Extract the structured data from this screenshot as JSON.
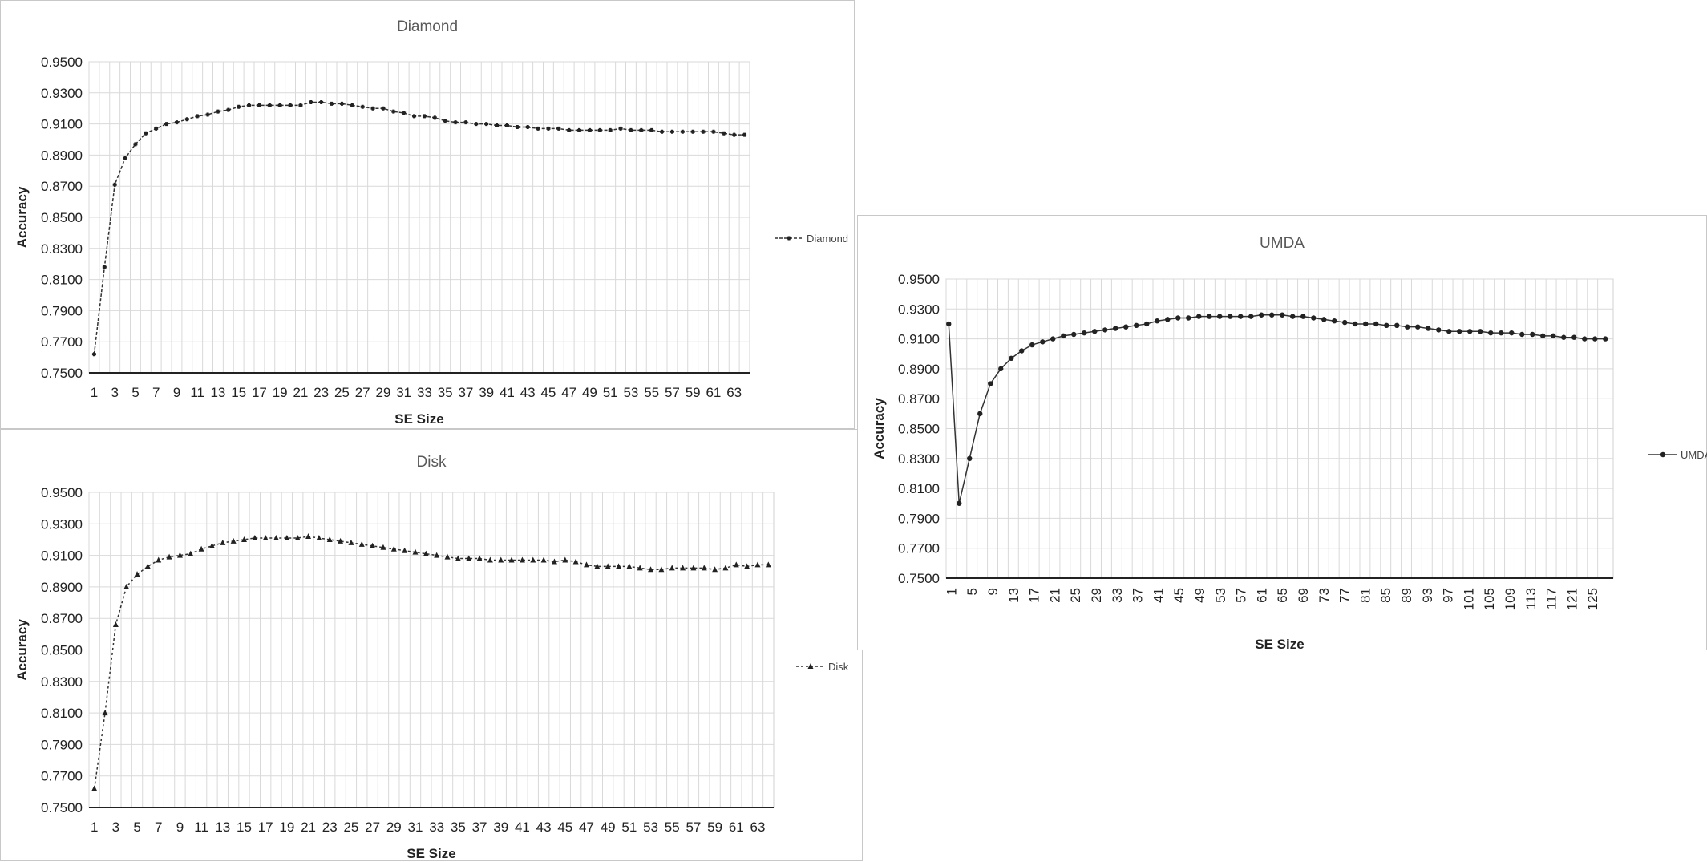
{
  "chart_data": [
    {
      "id": "diamond",
      "type": "line",
      "title": "Diamond",
      "xlabel": "SE Size",
      "ylabel": "Accuracy",
      "ylim": [
        0.75,
        0.95
      ],
      "yticks": [
        "0.9500",
        "0.9300",
        "0.9100",
        "0.8900",
        "0.8700",
        "0.8500",
        "0.8300",
        "0.8100",
        "0.7900",
        "0.7700",
        "0.7500"
      ],
      "x_tick_labels": [
        "1",
        "3",
        "5",
        "7",
        "9",
        "11",
        "13",
        "15",
        "17",
        "19",
        "21",
        "23",
        "25",
        "27",
        "29",
        "31",
        "33",
        "35",
        "37",
        "39",
        "41",
        "43",
        "45",
        "47",
        "49",
        "51",
        "53",
        "55",
        "57",
        "59",
        "61",
        "63"
      ],
      "grid": true,
      "legend_position": "right",
      "series": [
        {
          "name": "Diamond",
          "x": [
            1,
            2,
            3,
            4,
            5,
            6,
            7,
            8,
            9,
            10,
            11,
            12,
            13,
            14,
            15,
            16,
            17,
            18,
            19,
            20,
            21,
            22,
            23,
            24,
            25,
            26,
            27,
            28,
            29,
            30,
            31,
            32,
            33,
            34,
            35,
            36,
            37,
            38,
            39,
            40,
            41,
            42,
            43,
            44,
            45,
            46,
            47,
            48,
            49,
            50,
            51,
            52,
            53,
            54,
            55,
            56,
            57,
            58,
            59,
            60,
            61,
            62,
            63,
            64
          ],
          "y": [
            0.762,
            0.818,
            0.871,
            0.888,
            0.897,
            0.904,
            0.907,
            0.91,
            0.911,
            0.913,
            0.915,
            0.916,
            0.918,
            0.919,
            0.921,
            0.922,
            0.922,
            0.922,
            0.922,
            0.922,
            0.922,
            0.924,
            0.924,
            0.923,
            0.923,
            0.922,
            0.921,
            0.92,
            0.92,
            0.918,
            0.917,
            0.915,
            0.915,
            0.914,
            0.912,
            0.911,
            0.911,
            0.91,
            0.91,
            0.909,
            0.909,
            0.908,
            0.908,
            0.907,
            0.907,
            0.907,
            0.906,
            0.906,
            0.906,
            0.906,
            0.906,
            0.907,
            0.906,
            0.906,
            0.906,
            0.905,
            0.905,
            0.905,
            0.905,
            0.905,
            0.905,
            0.904,
            0.903,
            0.903
          ]
        }
      ]
    },
    {
      "id": "disk",
      "type": "line",
      "title": "Disk",
      "xlabel": "SE Size",
      "ylabel": "Accuracy",
      "ylim": [
        0.75,
        0.95
      ],
      "yticks": [
        "0.9500",
        "0.9300",
        "0.9100",
        "0.8900",
        "0.8700",
        "0.8500",
        "0.8300",
        "0.8100",
        "0.7900",
        "0.7700",
        "0.7500"
      ],
      "x_tick_labels": [
        "1",
        "3",
        "5",
        "7",
        "9",
        "11",
        "13",
        "15",
        "17",
        "19",
        "21",
        "23",
        "25",
        "27",
        "29",
        "31",
        "33",
        "35",
        "37",
        "39",
        "41",
        "43",
        "45",
        "47",
        "49",
        "51",
        "53",
        "55",
        "57",
        "59",
        "61",
        "63"
      ],
      "grid": true,
      "legend_position": "right",
      "series": [
        {
          "name": "Disk",
          "x": [
            1,
            2,
            3,
            4,
            5,
            6,
            7,
            8,
            9,
            10,
            11,
            12,
            13,
            14,
            15,
            16,
            17,
            18,
            19,
            20,
            21,
            22,
            23,
            24,
            25,
            26,
            27,
            28,
            29,
            30,
            31,
            32,
            33,
            34,
            35,
            36,
            37,
            38,
            39,
            40,
            41,
            42,
            43,
            44,
            45,
            46,
            47,
            48,
            49,
            50,
            51,
            52,
            53,
            54,
            55,
            56,
            57,
            58,
            59,
            60,
            61,
            62,
            63,
            64
          ],
          "y": [
            0.762,
            0.81,
            0.866,
            0.89,
            0.898,
            0.903,
            0.907,
            0.909,
            0.91,
            0.911,
            0.914,
            0.916,
            0.918,
            0.919,
            0.92,
            0.921,
            0.921,
            0.921,
            0.921,
            0.921,
            0.922,
            0.921,
            0.92,
            0.919,
            0.918,
            0.917,
            0.916,
            0.915,
            0.914,
            0.913,
            0.912,
            0.911,
            0.91,
            0.909,
            0.908,
            0.908,
            0.908,
            0.907,
            0.907,
            0.907,
            0.907,
            0.907,
            0.907,
            0.906,
            0.907,
            0.906,
            0.904,
            0.903,
            0.903,
            0.903,
            0.903,
            0.902,
            0.901,
            0.901,
            0.902,
            0.902,
            0.902,
            0.902,
            0.901,
            0.902,
            0.904,
            0.903,
            0.904,
            0.904
          ]
        }
      ]
    },
    {
      "id": "umda",
      "type": "line",
      "title": "UMDA",
      "xlabel": "SE Size",
      "ylabel": "Accuracy",
      "ylim": [
        0.75,
        0.95
      ],
      "yticks": [
        "0.9500",
        "0.9300",
        "0.9100",
        "0.8900",
        "0.8700",
        "0.8500",
        "0.8300",
        "0.8100",
        "0.7900",
        "0.7700",
        "0.7500"
      ],
      "x_tick_labels": [
        "1",
        "5",
        "9",
        "13",
        "17",
        "21",
        "25",
        "29",
        "33",
        "37",
        "41",
        "45",
        "49",
        "53",
        "57",
        "61",
        "65",
        "69",
        "73",
        "77",
        "81",
        "85",
        "89",
        "93",
        "97",
        "101",
        "105",
        "109",
        "113",
        "117",
        "121",
        "125"
      ],
      "grid": true,
      "legend_position": "right",
      "series": [
        {
          "name": "UMDA",
          "x": [
            1,
            3,
            5,
            7,
            9,
            11,
            13,
            15,
            17,
            19,
            21,
            23,
            25,
            27,
            29,
            31,
            33,
            35,
            37,
            39,
            41,
            43,
            45,
            47,
            49,
            51,
            53,
            55,
            57,
            59,
            61,
            63,
            65,
            67,
            69,
            71,
            73,
            75,
            77,
            79,
            81,
            83,
            85,
            87,
            89,
            91,
            93,
            95,
            97,
            99,
            101,
            103,
            105,
            107,
            109,
            111,
            113,
            115,
            117,
            119,
            121,
            123,
            125,
            127
          ],
          "y": [
            0.92,
            0.8,
            0.83,
            0.86,
            0.88,
            0.89,
            0.897,
            0.902,
            0.906,
            0.908,
            0.91,
            0.912,
            0.913,
            0.914,
            0.915,
            0.916,
            0.917,
            0.918,
            0.919,
            0.92,
            0.922,
            0.923,
            0.924,
            0.924,
            0.925,
            0.925,
            0.925,
            0.925,
            0.925,
            0.925,
            0.926,
            0.926,
            0.926,
            0.925,
            0.925,
            0.924,
            0.923,
            0.922,
            0.921,
            0.92,
            0.92,
            0.92,
            0.919,
            0.919,
            0.918,
            0.918,
            0.917,
            0.916,
            0.915,
            0.915,
            0.915,
            0.915,
            0.914,
            0.914,
            0.914,
            0.913,
            0.913,
            0.912,
            0.912,
            0.911,
            0.911,
            0.91,
            0.91,
            0.91
          ]
        }
      ]
    }
  ]
}
